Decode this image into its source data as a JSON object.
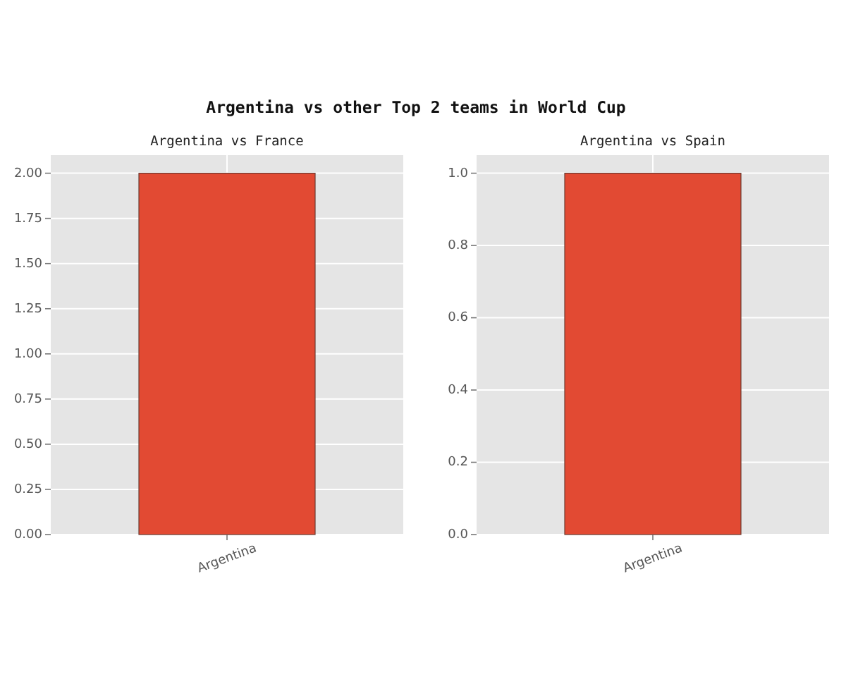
{
  "chart_data": [
    {
      "type": "other",
      "title": "Argentina vs other Top 2 teams in World Cup"
    },
    {
      "type": "bar",
      "title": "Argentina vs France",
      "categories": [
        "Argentina"
      ],
      "values": [
        2
      ],
      "color": "#e24a33",
      "ylim": [
        0,
        2.1
      ],
      "yticks": [
        {
          "value": 0,
          "label": "0.00"
        },
        {
          "value": 0.25,
          "label": "0.25"
        },
        {
          "value": 0.5,
          "label": "0.50"
        },
        {
          "value": 0.75,
          "label": "0.75"
        },
        {
          "value": 1,
          "label": "1.00"
        },
        {
          "value": 1.25,
          "label": "1.25"
        },
        {
          "value": 1.5,
          "label": "1.50"
        },
        {
          "value": 1.75,
          "label": "1.75"
        },
        {
          "value": 2,
          "label": "2.00"
        }
      ],
      "grid": true
    },
    {
      "type": "bar",
      "title": "Argentina vs Spain",
      "categories": [
        "Argentina"
      ],
      "values": [
        1
      ],
      "color": "#e24a33",
      "ylim": [
        0,
        1.05
      ],
      "yticks": [
        {
          "value": 0,
          "label": "0.0"
        },
        {
          "value": 0.2,
          "label": "0.2"
        },
        {
          "value": 0.4,
          "label": "0.4"
        },
        {
          "value": 0.6,
          "label": "0.6"
        },
        {
          "value": 0.8,
          "label": "0.8"
        },
        {
          "value": 1,
          "label": "1.0"
        }
      ],
      "grid": true
    }
  ]
}
